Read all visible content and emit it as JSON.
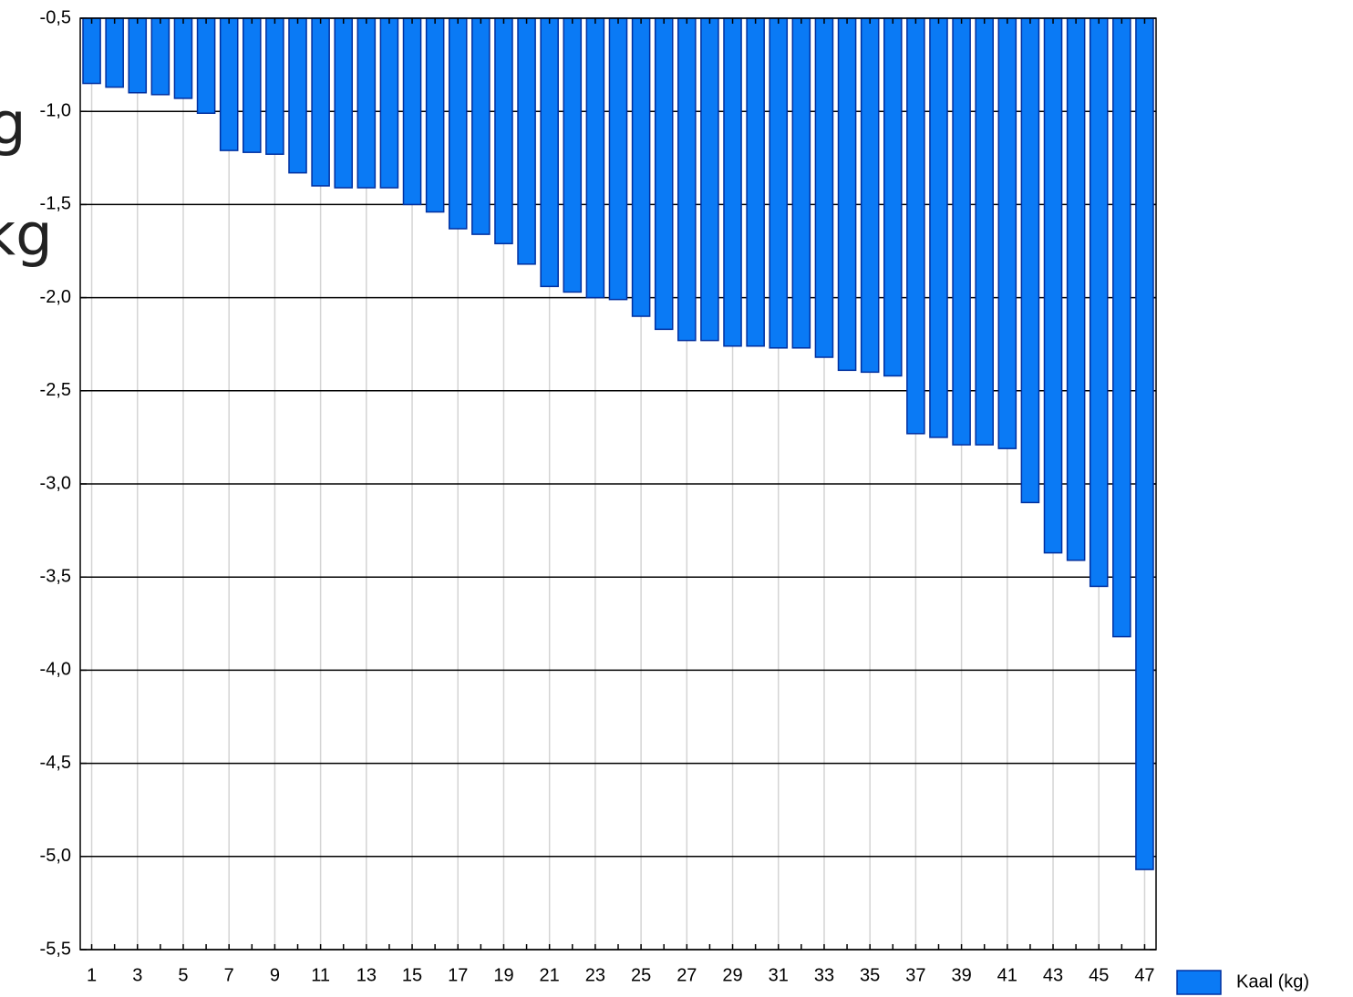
{
  "chart_data": {
    "type": "bar",
    "categories": [
      "1",
      null,
      "3",
      null,
      "5",
      null,
      "7",
      null,
      "9",
      null,
      "11",
      null,
      "13",
      null,
      "15",
      null,
      "17",
      null,
      "19",
      null,
      "21",
      null,
      "23",
      null,
      "25",
      null,
      "27",
      null,
      "29",
      null,
      "31",
      null,
      "33",
      null,
      "35",
      null,
      "37",
      null,
      "39",
      null,
      "41",
      null,
      "43",
      null,
      "45",
      null,
      "47"
    ],
    "series": [
      {
        "name": "Kaal (kg)",
        "color": "#0a7af5",
        "values": [
          -0.85,
          -0.87,
          -0.9,
          -0.91,
          -0.93,
          -1.01,
          -1.21,
          -1.22,
          -1.23,
          -1.33,
          -1.4,
          -1.41,
          -1.41,
          -1.41,
          -1.5,
          -1.54,
          -1.63,
          -1.66,
          -1.71,
          -1.82,
          -1.94,
          -1.97,
          -2.0,
          -2.01,
          -2.1,
          -2.17,
          -2.23,
          -2.23,
          -2.26,
          -2.26,
          -2.27,
          -2.27,
          -2.32,
          -2.39,
          -2.4,
          -2.42,
          -2.73,
          -2.75,
          -2.79,
          -2.79,
          -2.81,
          -3.1,
          -3.37,
          -3.41,
          -3.55,
          -3.82,
          -5.07
        ]
      }
    ],
    "ylim": [
      -5.5,
      -0.5
    ],
    "yticks": [
      {
        "value": -5.5,
        "label": "-5,5"
      },
      {
        "value": -5.0,
        "label": "-5,0"
      },
      {
        "value": -4.5,
        "label": "-4,5"
      },
      {
        "value": -4.0,
        "label": "-4,0"
      },
      {
        "value": -3.5,
        "label": "-3,5"
      },
      {
        "value": -3.0,
        "label": "-3,0"
      },
      {
        "value": -2.5,
        "label": "-2,5"
      },
      {
        "value": -2.0,
        "label": "-2,0"
      },
      {
        "value": -1.5,
        "label": "-1,5"
      },
      {
        "value": -1.0,
        "label": "-1,0"
      },
      {
        "value": -0.5,
        "label": "-0,5"
      }
    ],
    "grid": true,
    "legend": "bottom-right"
  },
  "overlay_texts": [
    "g",
    "kg"
  ]
}
